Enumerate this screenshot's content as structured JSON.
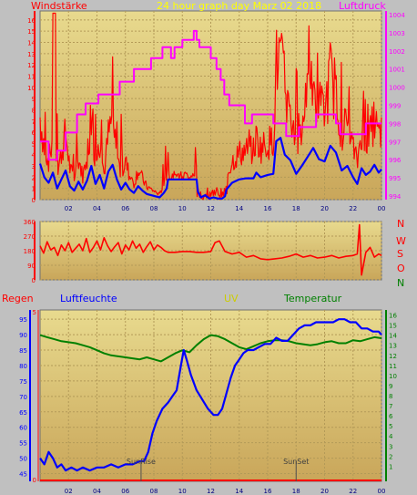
{
  "colors": {
    "wind": "#ff0000",
    "gust": "#ff0000",
    "avgwind": "#0000ff",
    "pressure": "#ff00ff",
    "winddir": "#ff0000",
    "rain": "#ff0000",
    "humidity": "#0000ff",
    "uv": "#cccc00",
    "temperature": "#008000",
    "markers": "#505050"
  },
  "chart_data": [
    {
      "type": "line",
      "title": "24 hour graph day   Marz 02 2018",
      "left_axis_label": "Windstärke",
      "right_axis_label": "Luftdruck",
      "x_ticks": [
        "02",
        "04",
        "06",
        "08",
        "10",
        "12",
        "14",
        "16",
        "18",
        "20",
        "22",
        "00"
      ],
      "y_left_ticks": [
        "0",
        "1",
        "2",
        "3",
        "4",
        "5",
        "6",
        "7",
        "8",
        "9",
        "10",
        "11",
        "12",
        "13",
        "14",
        "15",
        "16"
      ],
      "y_right_ticks": [
        "994",
        "995",
        "996",
        "997",
        "998",
        "999",
        "1000",
        "1001",
        "1002",
        "1003",
        "1004"
      ],
      "ylim_left": [
        0,
        16.8
      ],
      "ylim_right": [
        993.8,
        1004.2
      ],
      "grid": true,
      "series": [
        {
          "key": "pressure",
          "x": [
            0,
            0.6,
            0.6,
            1.2,
            1.2,
            1.8,
            1.8,
            2.6,
            2.6,
            3.2,
            3.2,
            4.1,
            4.1,
            5.6,
            5.6,
            6.6,
            6.6,
            7.8,
            7.8,
            8.6,
            8.6,
            9.2,
            9.2,
            9.45,
            9.45,
            10.0,
            10.0,
            10.8,
            10.8,
            11.0,
            11.0,
            11.2,
            11.2,
            12.0,
            12.0,
            12.4,
            12.4,
            12.7,
            12.7,
            12.95,
            12.95,
            13.3,
            13.3,
            14.4,
            14.4,
            14.9,
            14.9,
            16.4,
            16.4,
            17.3,
            17.3,
            18.2,
            18.2,
            19.4,
            19.4,
            20.8,
            20.8,
            21.1,
            21.1,
            22.9,
            22.9,
            24
          ],
          "y": [
            997,
            997,
            996,
            996,
            996.5,
            996.5,
            997.5,
            997.5,
            998.5,
            998.5,
            999.1,
            999.1,
            999.6,
            999.6,
            1000.3,
            1000.3,
            1001,
            1001,
            1001.6,
            1001.6,
            1002.2,
            1002.2,
            1001.6,
            1001.6,
            1002.2,
            1002.2,
            1002.6,
            1002.6,
            1003.1,
            1003.1,
            1002.6,
            1002.6,
            1002.2,
            1002.2,
            1001.6,
            1001.6,
            1001,
            1001,
            1000.4,
            1000.4,
            999.6,
            999.6,
            999,
            999,
            998,
            998,
            998.5,
            998.5,
            998,
            998,
            997.3,
            997.3,
            997.8,
            997.8,
            998.5,
            998.5,
            998,
            998,
            997.4,
            997.4,
            998,
            998
          ]
        },
        {
          "key": "avgwind",
          "x": [
            0,
            0.3,
            0.6,
            0.9,
            1.2,
            1.5,
            1.8,
            2.1,
            2.4,
            2.7,
            3.0,
            3.3,
            3.6,
            3.9,
            4.2,
            4.5,
            4.8,
            5.1,
            5.4,
            5.7,
            6.0,
            6.3,
            6.6,
            6.9,
            7.2,
            7.5,
            7.8,
            8.1,
            8.4,
            8.7,
            8.9,
            9.0,
            9.5,
            10.0,
            10.5,
            11.0,
            11.1,
            11.3,
            11.6,
            11.9,
            12.2,
            12.5,
            12.8,
            13.0,
            13.1,
            13.5,
            14.0,
            14.5,
            15.0,
            15.2,
            15.5,
            16.0,
            16.4,
            16.6,
            16.9,
            17.2,
            17.6,
            18.0,
            18.4,
            18.8,
            19.2,
            19.6,
            20.0,
            20.4,
            20.8,
            21.2,
            21.6,
            22.0,
            22.3,
            22.6,
            22.9,
            23.2,
            23.5,
            23.8,
            24
          ],
          "y": [
            3.2,
            2.0,
            1.5,
            2.4,
            1.0,
            1.8,
            2.6,
            1.2,
            0.8,
            1.6,
            0.9,
            1.7,
            3.0,
            1.4,
            2.2,
            1.0,
            2.5,
            3.1,
            1.8,
            0.9,
            1.5,
            0.9,
            0.6,
            1.2,
            0.8,
            0.5,
            0.4,
            0.3,
            0.2,
            0.6,
            1.0,
            1.8,
            1.8,
            1.8,
            1.8,
            1.8,
            0.7,
            0.2,
            0.4,
            0.1,
            0.2,
            0.1,
            0.1,
            0.3,
            0.9,
            1.5,
            1.8,
            1.9,
            1.9,
            2.4,
            2.0,
            2.2,
            2.3,
            5.2,
            5.5,
            4.0,
            3.5,
            2.3,
            3.0,
            3.8,
            4.6,
            3.6,
            3.4,
            4.8,
            4.2,
            2.6,
            3.0,
            2.0,
            1.4,
            2.8,
            2.2,
            2.5,
            3.1,
            2.4,
            2.7
          ]
        }
      ]
    },
    {
      "type": "line",
      "title": "",
      "right_axis_labels": [
        "N",
        "W",
        "S",
        "O",
        "N"
      ],
      "y_ticks": [
        "0",
        "90",
        "180",
        "270",
        "360"
      ],
      "ylim": [
        0,
        360
      ],
      "x_ticks": [],
      "grid": true,
      "series": [
        {
          "key": "winddir",
          "x": [
            0,
            0.25,
            0.5,
            0.75,
            1.0,
            1.25,
            1.5,
            1.75,
            2.0,
            2.25,
            2.5,
            2.75,
            3.0,
            3.25,
            3.5,
            3.75,
            4.0,
            4.25,
            4.5,
            4.75,
            5.0,
            5.25,
            5.5,
            5.75,
            6.0,
            6.25,
            6.5,
            6.75,
            7.0,
            7.25,
            7.5,
            7.75,
            8.0,
            8.25,
            8.5,
            8.75,
            9.0,
            9.5,
            10.0,
            10.5,
            11.0,
            11.5,
            12.0,
            12.3,
            12.6,
            13.0,
            13.5,
            14.0,
            14.5,
            15.0,
            15.5,
            16.0,
            16.5,
            17.0,
            17.5,
            18.0,
            18.5,
            19.0,
            19.5,
            20.0,
            20.5,
            21.0,
            21.5,
            22.0,
            22.3,
            22.45,
            22.6,
            22.9,
            23.2,
            23.5,
            23.8,
            24
          ],
          "y": [
            210,
            165,
            235,
            185,
            200,
            150,
            215,
            180,
            230,
            170,
            195,
            220,
            180,
            255,
            170,
            200,
            240,
            185,
            260,
            210,
            175,
            205,
            230,
            160,
            215,
            185,
            240,
            195,
            220,
            170,
            205,
            235,
            185,
            215,
            200,
            180,
            170,
            170,
            175,
            175,
            170,
            170,
            175,
            230,
            240,
            175,
            160,
            170,
            140,
            150,
            130,
            125,
            130,
            135,
            145,
            160,
            140,
            150,
            135,
            140,
            150,
            135,
            145,
            150,
            160,
            340,
            30,
            170,
            200,
            140,
            160,
            150
          ]
        }
      ]
    },
    {
      "type": "line",
      "title": "",
      "rain_label": "Regen",
      "humidity_label": "Luftfeuchte",
      "uv_label": "UV",
      "temp_label": "Temperatur",
      "x_ticks": [
        "02",
        "04",
        "06",
        "08",
        "10",
        "12",
        "14",
        "16",
        "18",
        "20",
        "22",
        "00"
      ],
      "humidity_ticks": [
        "45",
        "50",
        "55",
        "60",
        "65",
        "70",
        "75",
        "80",
        "85",
        "90",
        "95"
      ],
      "rain_ticks": [
        "0",
        "5"
      ],
      "temp_ticks": [
        "1",
        "2",
        "3",
        "4",
        "5",
        "6",
        "7",
        "8",
        "9",
        "10",
        "11",
        "12",
        "13",
        "14",
        "15",
        "16"
      ],
      "ylim_humidity": [
        42.5,
        98
      ],
      "ylim_temperature": [
        -0.5,
        16.5
      ],
      "annotations": [
        {
          "text": "SunRise",
          "x": 7.1
        },
        {
          "text": "SunSet",
          "x": 18.0
        }
      ],
      "grid": true,
      "series": [
        {
          "key": "temperature",
          "x": [
            0,
            0.5,
            1.0,
            1.5,
            2.0,
            2.5,
            3.0,
            3.5,
            4.0,
            4.5,
            5.0,
            5.5,
            6.0,
            6.5,
            7.0,
            7.5,
            8.0,
            8.5,
            9.0,
            9.5,
            10.0,
            10.5,
            11.0,
            11.5,
            12.0,
            12.5,
            13.0,
            13.5,
            14.0,
            14.5,
            15.0,
            15.5,
            16.0,
            16.5,
            17.0,
            17.5,
            18.0,
            18.5,
            19.0,
            19.5,
            20.0,
            20.5,
            21.0,
            21.5,
            22.0,
            22.5,
            23.0,
            23.5,
            24
          ],
          "y": [
            14.0,
            13.8,
            13.6,
            13.4,
            13.3,
            13.2,
            13.0,
            12.8,
            12.5,
            12.2,
            12.0,
            11.9,
            11.8,
            11.7,
            11.6,
            11.8,
            11.6,
            11.4,
            11.8,
            12.2,
            12.5,
            12.3,
            13.0,
            13.6,
            14.0,
            13.9,
            13.6,
            13.2,
            12.8,
            12.6,
            12.9,
            13.2,
            13.4,
            13.5,
            13.5,
            13.4,
            13.2,
            13.1,
            13.0,
            13.1,
            13.3,
            13.4,
            13.2,
            13.2,
            13.5,
            13.4,
            13.6,
            13.8,
            13.7
          ]
        },
        {
          "key": "humidity",
          "x": [
            0,
            0.3,
            0.6,
            0.9,
            1.2,
            1.5,
            1.8,
            2.2,
            2.6,
            3.0,
            3.5,
            4.0,
            4.5,
            5.0,
            5.5,
            6.0,
            6.5,
            7.0,
            7.3,
            7.6,
            7.9,
            8.2,
            8.6,
            9.0,
            9.3,
            9.6,
            9.9,
            10.1,
            10.3,
            10.6,
            11.0,
            11.4,
            11.8,
            12.2,
            12.5,
            12.8,
            13.1,
            13.4,
            13.7,
            14.0,
            14.3,
            14.6,
            15.0,
            15.4,
            15.8,
            16.2,
            16.6,
            17.0,
            17.4,
            17.8,
            18.2,
            18.6,
            19.0,
            19.4,
            19.8,
            20.2,
            20.6,
            21.0,
            21.4,
            21.8,
            22.2,
            22.6,
            23.0,
            23.4,
            23.8,
            24
          ],
          "y": [
            50,
            48,
            52,
            50,
            47,
            48,
            46,
            47,
            46,
            47,
            46,
            47,
            47,
            48,
            47,
            48,
            48,
            49,
            49,
            52,
            58,
            62,
            66,
            68,
            70,
            72,
            80,
            85,
            82,
            77,
            72,
            69,
            66,
            64,
            64,
            66,
            71,
            76,
            80,
            82,
            84,
            85,
            85,
            86,
            87,
            87,
            89,
            88,
            88,
            90,
            92,
            93,
            93,
            94,
            94,
            94,
            94,
            95,
            95,
            94,
            94,
            92,
            92,
            91,
            91,
            90
          ]
        },
        {
          "key": "rain",
          "x": [
            0,
            24
          ],
          "y": [
            0,
            0
          ]
        }
      ]
    }
  ]
}
